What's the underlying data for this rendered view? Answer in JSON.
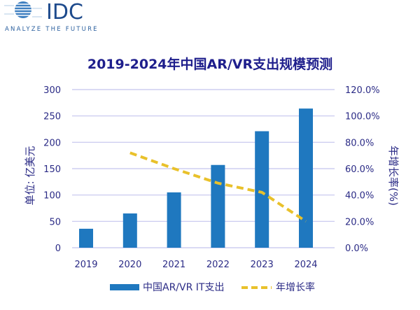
{
  "logo": {
    "name": "IDC",
    "tagline": "ANALYZE THE FUTURE"
  },
  "colors": {
    "bar": "#1F78BF",
    "line": "#E9C12B",
    "text": "#2B2B86",
    "title": "#1E1E8C",
    "grid": "#C4C4EE"
  },
  "chart_data": {
    "type": "bar",
    "title": "2019-2024年中国AR/VR支出规模预测",
    "categories": [
      "2019",
      "2020",
      "2021",
      "2022",
      "2023",
      "2024"
    ],
    "ylabel": "单位: 亿美元",
    "y2label": "年增长率(%)",
    "ylim": [
      0,
      300
    ],
    "y2lim": [
      0,
      120
    ],
    "yticks": [
      "0",
      "50",
      "100",
      "150",
      "200",
      "250",
      "300"
    ],
    "y2ticks": [
      "0.0%",
      "20.0%",
      "40.0%",
      "60.0%",
      "80.0%",
      "100.0%",
      "120.0%"
    ],
    "grid": true,
    "legend_position": "bottom",
    "series": [
      {
        "name": "中国AR/VR IT支出",
        "type": "bar",
        "axis": "left",
        "values": [
          36,
          65,
          105,
          157,
          221,
          264
        ]
      },
      {
        "name": "年增长率",
        "type": "line-dashed",
        "axis": "right",
        "values": [
          null,
          72,
          60,
          49,
          42,
          20
        ]
      }
    ]
  }
}
